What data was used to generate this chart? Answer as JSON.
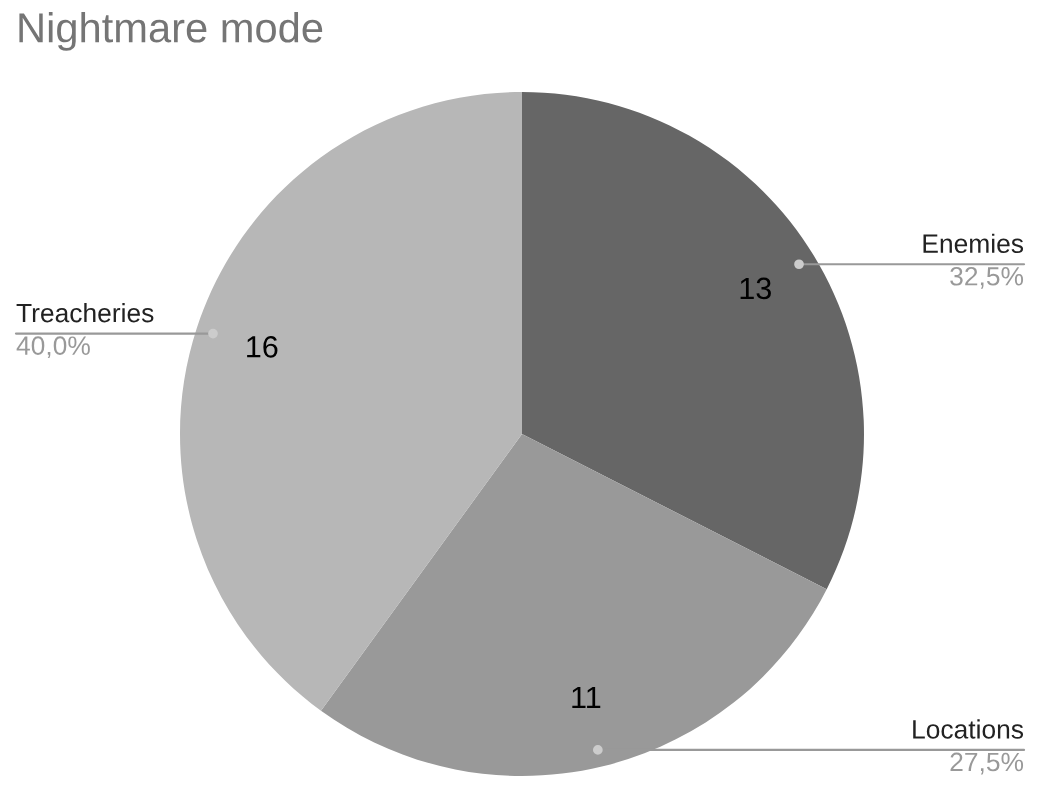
{
  "chart_data": {
    "type": "pie",
    "title": "Nightmare mode",
    "categories": [
      "Enemies",
      "Locations",
      "Treacheries"
    ],
    "values": [
      13,
      11,
      16
    ],
    "colors": [
      "#666666",
      "#999999",
      "#b7b7b7"
    ],
    "data_labels": true,
    "annotations": [
      "32,5%",
      "27,5%",
      "40,0%"
    ]
  }
}
